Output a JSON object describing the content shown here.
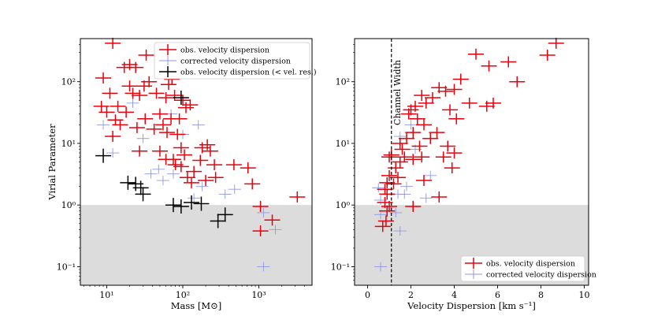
{
  "colors": {
    "observed": "#e8000b",
    "corrected": "#8f97e6",
    "below_resolution": "#000000",
    "shade": "#dcdcdc"
  },
  "chart_data": [
    {
      "type": "scatter",
      "xscale": "log",
      "yscale": "log",
      "xlabel": "Mass [M⊙]",
      "ylabel": "Virial Parameter",
      "xlim": [
        4.5,
        5000
      ],
      "ylim": [
        0.05,
        500
      ],
      "xticks": [
        {
          "v": 10,
          "label": "10¹"
        },
        {
          "v": 100,
          "label": "10²"
        },
        {
          "v": 1000,
          "label": "10³"
        }
      ],
      "yticks": [
        {
          "v": 0.1,
          "label": "10⁻¹"
        },
        {
          "v": 1,
          "label": "10⁰"
        },
        {
          "v": 10,
          "label": "10¹"
        },
        {
          "v": 100,
          "label": "10²"
        }
      ],
      "shade_below": 1,
      "legend": {
        "placement": "top-right",
        "entries": [
          {
            "series": "observed",
            "label": "obs. velocity dispersion"
          },
          {
            "series": "corrected",
            "label": "corrected velocity dispersion"
          },
          {
            "series": "below_resolution",
            "label": "obs. velocity dispersion (< vel. res.)"
          }
        ]
      },
      "series": [
        {
          "name": "observed",
          "points": [
            {
              "x": 12,
              "y": 420
            },
            {
              "x": 17,
              "y": 170
            },
            {
              "x": 20,
              "y": 190
            },
            {
              "x": 24,
              "y": 170
            },
            {
              "x": 33,
              "y": 270
            },
            {
              "x": 9,
              "y": 115
            },
            {
              "x": 11,
              "y": 65
            },
            {
              "x": 8.5,
              "y": 40
            },
            {
              "x": 10,
              "y": 32
            },
            {
              "x": 14,
              "y": 40
            },
            {
              "x": 20,
              "y": 85
            },
            {
              "x": 22,
              "y": 65
            },
            {
              "x": 27,
              "y": 60
            },
            {
              "x": 31,
              "y": 85
            },
            {
              "x": 36,
              "y": 100
            },
            {
              "x": 45,
              "y": 65
            },
            {
              "x": 50,
              "y": 30
            },
            {
              "x": 60,
              "y": 55
            },
            {
              "x": 65,
              "y": 90
            },
            {
              "x": 72,
              "y": 110
            },
            {
              "x": 78,
              "y": 60
            },
            {
              "x": 100,
              "y": 50
            },
            {
              "x": 110,
              "y": 38
            },
            {
              "x": 125,
              "y": 42
            },
            {
              "x": 90,
              "y": 25
            },
            {
              "x": 13,
              "y": 24
            },
            {
              "x": 18,
              "y": 32
            },
            {
              "x": 25,
              "y": 18
            },
            {
              "x": 32,
              "y": 25
            },
            {
              "x": 42,
              "y": 17
            },
            {
              "x": 55,
              "y": 20
            },
            {
              "x": 62,
              "y": 15
            },
            {
              "x": 70,
              "y": 25
            },
            {
              "x": 85,
              "y": 14
            },
            {
              "x": 15,
              "y": 20
            },
            {
              "x": 12,
              "y": 13
            },
            {
              "x": 27,
              "y": 7.5
            },
            {
              "x": 50,
              "y": 7.5
            },
            {
              "x": 95,
              "y": 8.5
            },
            {
              "x": 105,
              "y": 6.5
            },
            {
              "x": 180,
              "y": 8.5
            },
            {
              "x": 210,
              "y": 9.5
            },
            {
              "x": 60,
              "y": 5.5
            },
            {
              "x": 75,
              "y": 5.5
            },
            {
              "x": 80,
              "y": 4.5
            },
            {
              "x": 170,
              "y": 5.3
            },
            {
              "x": 230,
              "y": 7.5
            },
            {
              "x": 95,
              "y": 4.2
            },
            {
              "x": 140,
              "y": 3.5
            },
            {
              "x": 260,
              "y": 4.5
            },
            {
              "x": 470,
              "y": 4.5
            },
            {
              "x": 115,
              "y": 2.8
            },
            {
              "x": 130,
              "y": 2.3
            },
            {
              "x": 200,
              "y": 2.5
            },
            {
              "x": 270,
              "y": 2.8
            },
            {
              "x": 720,
              "y": 4
            },
            {
              "x": 820,
              "y": 2.2
            },
            {
              "x": 1050,
              "y": 0.95
            },
            {
              "x": 1050,
              "y": 0.38
            },
            {
              "x": 1500,
              "y": 0.57
            },
            {
              "x": 3200,
              "y": 1.35
            }
          ]
        },
        {
          "name": "corrected",
          "points": [
            {
              "x": 9,
              "y": 20
            },
            {
              "x": 12,
              "y": 7
            },
            {
              "x": 30,
              "y": 12
            },
            {
              "x": 38,
              "y": 3.2
            },
            {
              "x": 48,
              "y": 3.8
            },
            {
              "x": 55,
              "y": 2.5
            },
            {
              "x": 75,
              "y": 3.2
            },
            {
              "x": 140,
              "y": 1.3
            },
            {
              "x": 180,
              "y": 2
            },
            {
              "x": 360,
              "y": 1.5
            },
            {
              "x": 480,
              "y": 1.8
            },
            {
              "x": 1150,
              "y": 0.75
            },
            {
              "x": 1150,
              "y": 0.1
            },
            {
              "x": 1650,
              "y": 0.4
            },
            {
              "x": 100,
              "y": 14
            },
            {
              "x": 160,
              "y": 20
            },
            {
              "x": 70,
              "y": 30
            },
            {
              "x": 22,
              "y": 45
            }
          ]
        },
        {
          "name": "below_resolution",
          "points": [
            {
              "x": 9,
              "y": 6.3
            },
            {
              "x": 19,
              "y": 2.3
            },
            {
              "x": 24,
              "y": 2.2
            },
            {
              "x": 28,
              "y": 1.9
            },
            {
              "x": 30,
              "y": 1.5
            },
            {
              "x": 75,
              "y": 1
            },
            {
              "x": 95,
              "y": 0.95
            },
            {
              "x": 130,
              "y": 1.1
            },
            {
              "x": 175,
              "y": 1.05
            },
            {
              "x": 290,
              "y": 0.55
            },
            {
              "x": 360,
              "y": 0.7
            },
            {
              "x": 95,
              "y": 55
            }
          ]
        }
      ]
    },
    {
      "type": "scatter",
      "xscale": "linear",
      "yscale": "log",
      "xlabel": "Velocity Dispersion [km s⁻¹]",
      "ylabel": "",
      "xlim": [
        -0.6,
        10.2
      ],
      "ylim": [
        0.05,
        500
      ],
      "xticks": [
        {
          "v": 0,
          "label": "0"
        },
        {
          "v": 2,
          "label": "2"
        },
        {
          "v": 4,
          "label": "4"
        },
        {
          "v": 6,
          "label": "6"
        },
        {
          "v": 8,
          "label": "8"
        },
        {
          "v": 10,
          "label": "10"
        }
      ],
      "yticks": [
        {
          "v": 0.1,
          "label": "10⁻¹"
        },
        {
          "v": 1,
          "label": "10⁰"
        },
        {
          "v": 10,
          "label": "10¹"
        },
        {
          "v": 100,
          "label": "10²"
        }
      ],
      "shade_below": 1,
      "vline": {
        "x": 1.1,
        "label": "Channel Width"
      },
      "legend": {
        "placement": "bottom-right",
        "entries": [
          {
            "series": "observed",
            "label": "obs. velocity dispersion"
          },
          {
            "series": "corrected",
            "label": "corrected velocity dispersion"
          }
        ]
      },
      "series": [
        {
          "name": "observed",
          "points": [
            {
              "x": 8.7,
              "y": 420
            },
            {
              "x": 8.3,
              "y": 270
            },
            {
              "x": 6.5,
              "y": 210
            },
            {
              "x": 5.6,
              "y": 180
            },
            {
              "x": 5,
              "y": 280
            },
            {
              "x": 6.9,
              "y": 100
            },
            {
              "x": 5.8,
              "y": 45
            },
            {
              "x": 5.5,
              "y": 40
            },
            {
              "x": 4.3,
              "y": 110
            },
            {
              "x": 4,
              "y": 75
            },
            {
              "x": 3.6,
              "y": 70
            },
            {
              "x": 3.3,
              "y": 80
            },
            {
              "x": 3,
              "y": 55
            },
            {
              "x": 2.7,
              "y": 45
            },
            {
              "x": 2.5,
              "y": 60
            },
            {
              "x": 2.2,
              "y": 40
            },
            {
              "x": 2,
              "y": 35
            },
            {
              "x": 1.9,
              "y": 30
            },
            {
              "x": 3.8,
              "y": 35
            },
            {
              "x": 4.7,
              "y": 45
            },
            {
              "x": 4.1,
              "y": 25
            },
            {
              "x": 2.6,
              "y": 20
            },
            {
              "x": 2.3,
              "y": 25
            },
            {
              "x": 3.2,
              "y": 15
            },
            {
              "x": 2.9,
              "y": 12
            },
            {
              "x": 2.1,
              "y": 15
            },
            {
              "x": 1.8,
              "y": 12
            },
            {
              "x": 1.6,
              "y": 8
            },
            {
              "x": 1.5,
              "y": 10
            },
            {
              "x": 2.4,
              "y": 9
            },
            {
              "x": 3.7,
              "y": 9
            },
            {
              "x": 4,
              "y": 7
            },
            {
              "x": 1.3,
              "y": 4
            },
            {
              "x": 1.5,
              "y": 5
            },
            {
              "x": 1.7,
              "y": 6
            },
            {
              "x": 2.1,
              "y": 5.5
            },
            {
              "x": 2.5,
              "y": 6
            },
            {
              "x": 3.5,
              "y": 6
            },
            {
              "x": 3.9,
              "y": 4
            },
            {
              "x": 1.1,
              "y": 6.5
            },
            {
              "x": 1,
              "y": 6
            },
            {
              "x": 1,
              "y": 3
            },
            {
              "x": 1.2,
              "y": 2.2
            },
            {
              "x": 0.9,
              "y": 2.3
            },
            {
              "x": 0.8,
              "y": 1.8
            },
            {
              "x": 0.9,
              "y": 1.5
            },
            {
              "x": 0.8,
              "y": 1.1
            },
            {
              "x": 1,
              "y": 0.95
            },
            {
              "x": 0.9,
              "y": 0.8
            },
            {
              "x": 0.85,
              "y": 0.55
            },
            {
              "x": 0.7,
              "y": 0.45
            },
            {
              "x": 2.1,
              "y": 0.95
            },
            {
              "x": 3.3,
              "y": 1.35
            },
            {
              "x": 2.6,
              "y": 2.5
            },
            {
              "x": 1.4,
              "y": 2.8
            }
          ]
        },
        {
          "name": "corrected",
          "points": [
            {
              "x": 0.5,
              "y": 1.9
            },
            {
              "x": 0.6,
              "y": 1.2
            },
            {
              "x": 0.6,
              "y": 0.7
            },
            {
              "x": 0.6,
              "y": 0.1
            },
            {
              "x": 1.5,
              "y": 0.38
            },
            {
              "x": 1.3,
              "y": 0.75
            },
            {
              "x": 1.4,
              "y": 1.5
            },
            {
              "x": 2.7,
              "y": 1.3
            },
            {
              "x": 1.7,
              "y": 1.5
            },
            {
              "x": 1.8,
              "y": 2
            },
            {
              "x": 2,
              "y": 20
            },
            {
              "x": 1.5,
              "y": 13
            },
            {
              "x": 2.2,
              "y": 8
            },
            {
              "x": 2.9,
              "y": 3
            }
          ]
        }
      ]
    }
  ]
}
